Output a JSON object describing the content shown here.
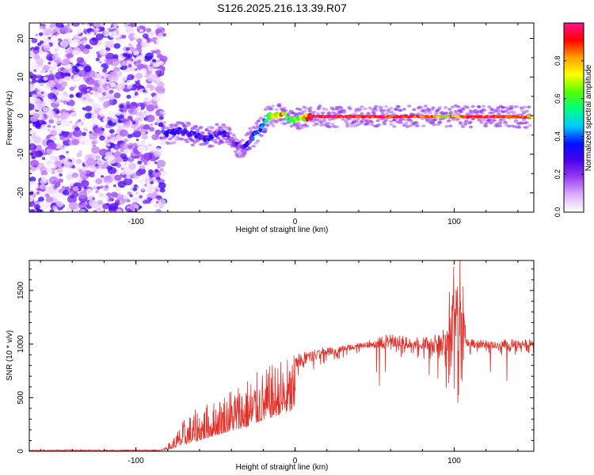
{
  "title": "S126.2025.216.13.39.R07",
  "chart_data": [
    {
      "type": "heatmap",
      "xlabel": "Height of straight line (km)",
      "ylabel": "Frequency (Hz)",
      "xlim": [
        -167,
        150
      ],
      "ylim": [
        -25,
        24
      ],
      "xticks": [
        -100,
        0,
        100
      ],
      "yticks": [
        -20,
        -10,
        0,
        10,
        20
      ],
      "noise_region_x": [
        -167,
        -82
      ],
      "ridge": {
        "x": [
          -83,
          -78,
          -73,
          -68,
          -63,
          -58,
          -53,
          -48,
          -43,
          -38,
          -33,
          -28,
          -23,
          -19,
          -16,
          -12,
          -8,
          -4,
          0,
          5,
          10,
          20,
          40,
          55,
          70,
          85,
          95,
          110,
          130,
          148
        ],
        "y": [
          -4.5,
          -4.5,
          -4,
          -4.5,
          -5,
          -6,
          -5.5,
          -4.5,
          -5,
          -7.5,
          -8.5,
          -6,
          -4,
          -1.5,
          0,
          0,
          0.5,
          -1,
          -1,
          -0.5,
          -0.2,
          -0.2,
          -0.2,
          -0.3,
          -0.2,
          -0.3,
          -0.1,
          -0.3,
          -0.2,
          -0.4
        ],
        "amplitude": [
          0.3,
          0.3,
          0.35,
          0.3,
          0.3,
          0.25,
          0.25,
          0.25,
          0.25,
          0.2,
          0.2,
          0.3,
          0.35,
          0.45,
          0.6,
          0.7,
          0.8,
          0.55,
          0.6,
          0.7,
          0.95,
          0.95,
          0.95,
          0.9,
          0.95,
          0.9,
          0.7,
          0.95,
          0.9,
          0.85
        ]
      },
      "colorbar": {
        "label": "Normalized spectral amplitude",
        "range": [
          0.0,
          1.0
        ],
        "ticks": [
          "0.0",
          "0.2",
          "0.4",
          "0.6",
          "0.8"
        ],
        "colors": [
          "#ffffff",
          "#ddb0ff",
          "#9a40f0",
          "#4b00ee",
          "#0010ff",
          "#00ccff",
          "#00ff80",
          "#55ff00",
          "#ffff00",
          "#ffa000",
          "#ff0000",
          "#ff1090"
        ]
      }
    },
    {
      "type": "line",
      "xlabel": "Height of straight line (km)",
      "ylabel": "SNR (10 * v/v)",
      "xlim": [
        -167,
        150
      ],
      "ylim": [
        0,
        1780
      ],
      "xticks": [
        -100,
        0,
        100
      ],
      "yticks": [
        0,
        500,
        1000,
        1500
      ],
      "color": "#e0302a",
      "envelope": {
        "x": [
          -167,
          -85,
          -78,
          -70,
          -60,
          -50,
          -40,
          -30,
          -20,
          -10,
          0,
          10,
          20,
          30,
          40,
          50,
          60,
          70,
          80,
          90,
          95,
          100,
          103,
          108,
          115,
          125,
          135,
          150
        ],
        "base": [
          8,
          8,
          40,
          120,
          200,
          300,
          380,
          450,
          580,
          680,
          760,
          820,
          880,
          920,
          950,
          960,
          960,
          950,
          940,
          900,
          880,
          860,
          900,
          940,
          950,
          950,
          950,
          960
        ],
        "peak": [
          30,
          30,
          90,
          300,
          420,
          480,
          620,
          700,
          760,
          860,
          900,
          950,
          980,
          1000,
          1010,
          1050,
          1100,
          1080,
          1060,
          1100,
          1200,
          1550,
          1760,
          1050,
          1040,
          1040,
          1050,
          1060
        ]
      }
    }
  ]
}
